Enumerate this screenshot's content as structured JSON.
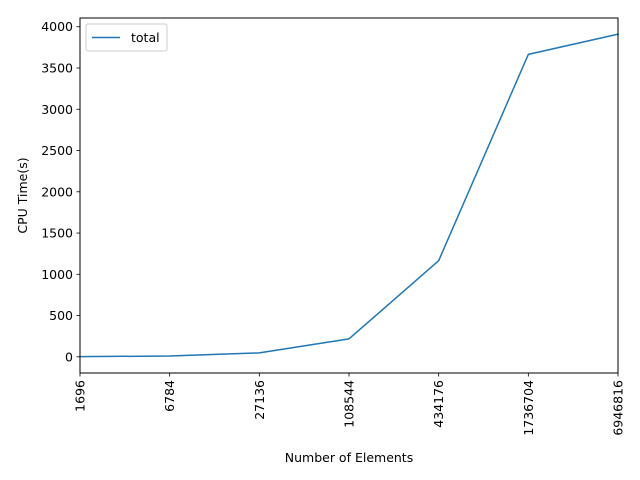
{
  "chart_data": {
    "type": "line",
    "title": "",
    "xlabel": "Number of Elements",
    "ylabel": "CPU Time(s)",
    "categories": [
      "1696",
      "6784",
      "27136",
      "108544",
      "434176",
      "1736704",
      "6946816"
    ],
    "series": [
      {
        "name": "total",
        "color": "#1f77b4",
        "values": [
          2,
          10,
          48,
          218,
          1165,
          3665,
          3910
        ]
      }
    ],
    "yticks": [
      0,
      500,
      1000,
      1500,
      2000,
      2500,
      3000,
      3500,
      4000
    ],
    "ylim": [
      -196,
      4106
    ],
    "grid": false,
    "legend_position": "top-left"
  }
}
